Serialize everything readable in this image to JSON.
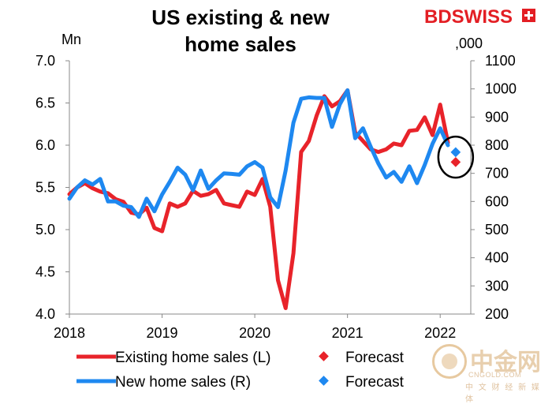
{
  "header": {
    "title_line1": "US existing & new",
    "title_line2": "home sales",
    "brand_part1": "BD",
    "brand_part2": "SWISS"
  },
  "axes": {
    "left_unit": "Mn",
    "right_unit": ",000"
  },
  "watermark": {
    "cn": "中金网",
    "en": "CNGOLD.COM",
    "sub": "中 文 财 经 新 媒 体"
  },
  "legend": {
    "existing_label": "Existing home sales (L)",
    "new_label": "New home sales (R)",
    "forecast_label_1": "Forecast",
    "forecast_label_2": "Forecast"
  },
  "chart_data": {
    "type": "line",
    "title": "US existing & new home sales",
    "x_ticks": [
      "2018",
      "2019",
      "2020",
      "2021",
      "2022"
    ],
    "x_range": [
      2018.0,
      2022.33
    ],
    "y_left": {
      "label": "Mn",
      "range": [
        4.0,
        7.0
      ],
      "ticks": [
        "4.0",
        "4.5",
        "5.0",
        "5.5",
        "6.0",
        "6.5",
        "7.0"
      ]
    },
    "y_right": {
      "label": ",000",
      "range": [
        200,
        1100
      ],
      "ticks": [
        "200",
        "300",
        "400",
        "500",
        "600",
        "700",
        "800",
        "900",
        "1000",
        "1100"
      ]
    },
    "colors": {
      "existing": "#e8232a",
      "new": "#1e88f0"
    },
    "series": [
      {
        "name": "Existing home sales (L)",
        "axis": "left",
        "x": [
          2018.0,
          2018.083,
          2018.167,
          2018.25,
          2018.333,
          2018.417,
          2018.5,
          2018.583,
          2018.667,
          2018.75,
          2018.833,
          2018.917,
          2019.0,
          2019.083,
          2019.167,
          2019.25,
          2019.333,
          2019.417,
          2019.5,
          2019.583,
          2019.667,
          2019.75,
          2019.833,
          2019.917,
          2020.0,
          2020.083,
          2020.167,
          2020.25,
          2020.333,
          2020.417,
          2020.5,
          2020.583,
          2020.667,
          2020.75,
          2020.833,
          2020.917,
          2021.0,
          2021.083,
          2021.167,
          2021.25,
          2021.333,
          2021.417,
          2021.5,
          2021.583,
          2021.667,
          2021.75,
          2021.833,
          2021.917,
          2022.0,
          2022.083
        ],
        "values": [
          5.42,
          5.5,
          5.55,
          5.49,
          5.45,
          5.43,
          5.36,
          5.33,
          5.2,
          5.18,
          5.26,
          5.02,
          4.98,
          5.31,
          5.27,
          5.31,
          5.46,
          5.4,
          5.42,
          5.47,
          5.31,
          5.29,
          5.27,
          5.45,
          5.41,
          5.6,
          5.27,
          4.4,
          4.07,
          4.72,
          5.92,
          6.05,
          6.35,
          6.58,
          6.46,
          6.52,
          6.65,
          6.15,
          6.05,
          5.95,
          5.92,
          5.95,
          6.02,
          6.0,
          6.17,
          6.18,
          6.33,
          6.12,
          6.48,
          6.03
        ]
      },
      {
        "name": "New home sales (R)",
        "axis": "right",
        "x": [
          2018.0,
          2018.083,
          2018.167,
          2018.25,
          2018.333,
          2018.417,
          2018.5,
          2018.583,
          2018.667,
          2018.75,
          2018.833,
          2018.917,
          2019.0,
          2019.083,
          2019.167,
          2019.25,
          2019.333,
          2019.417,
          2019.5,
          2019.583,
          2019.667,
          2019.75,
          2019.833,
          2019.917,
          2020.0,
          2020.083,
          2020.167,
          2020.25,
          2020.333,
          2020.417,
          2020.5,
          2020.583,
          2020.667,
          2020.75,
          2020.833,
          2020.917,
          2021.0,
          2021.083,
          2021.167,
          2021.25,
          2021.333,
          2021.417,
          2021.5,
          2021.583,
          2021.667,
          2021.75,
          2021.833,
          2021.917,
          2022.0,
          2022.083
        ],
        "values": [
          610,
          650,
          675,
          660,
          680,
          600,
          600,
          585,
          580,
          545,
          610,
          565,
          625,
          670,
          720,
          695,
          640,
          710,
          645,
          675,
          700,
          698,
          695,
          725,
          740,
          720,
          615,
          580,
          710,
          880,
          965,
          970,
          968,
          968,
          865,
          945,
          995,
          825,
          860,
          795,
          735,
          685,
          705,
          670,
          725,
          665,
          730,
          805,
          860,
          800
        ]
      }
    ],
    "forecasts": [
      {
        "name": "Forecast",
        "series": "Existing home sales (L)",
        "axis": "left",
        "x": 2022.167,
        "value": 5.8
      },
      {
        "name": "Forecast",
        "series": "New home sales (R)",
        "axis": "right",
        "x": 2022.167,
        "value": 775
      }
    ],
    "annotation": "circle around forecast points",
    "legend_position": "bottom"
  }
}
